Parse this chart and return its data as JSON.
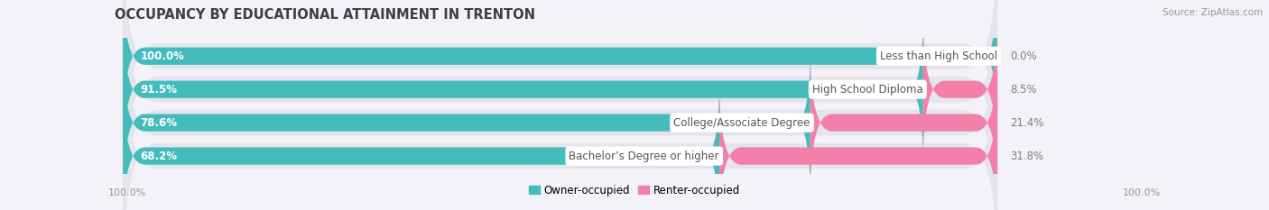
{
  "title": "OCCUPANCY BY EDUCATIONAL ATTAINMENT IN TRENTON",
  "source": "Source: ZipAtlas.com",
  "categories": [
    "Less than High School",
    "High School Diploma",
    "College/Associate Degree",
    "Bachelor’s Degree or higher"
  ],
  "owner_values": [
    100.0,
    91.5,
    78.6,
    68.2
  ],
  "renter_values": [
    0.0,
    8.5,
    21.4,
    31.8
  ],
  "owner_color": "#45BCBC",
  "renter_color": "#F47FA8",
  "row_bg_color": "#E4E4EC",
  "label_bg_color": "#FFFFFF",
  "owner_text_color": "#FFFFFF",
  "renter_text_color": "#808080",
  "category_text_color": "#555555",
  "owner_label": "Owner-occupied",
  "renter_label": "Renter-occupied",
  "title_fontsize": 10.5,
  "source_fontsize": 7.5,
  "bar_label_fontsize": 8.5,
  "cat_label_fontsize": 8.5,
  "tick_fontsize": 8,
  "background_color": "#F2F2F7",
  "left_axis_label": "100.0%",
  "right_axis_label": "100.0%"
}
